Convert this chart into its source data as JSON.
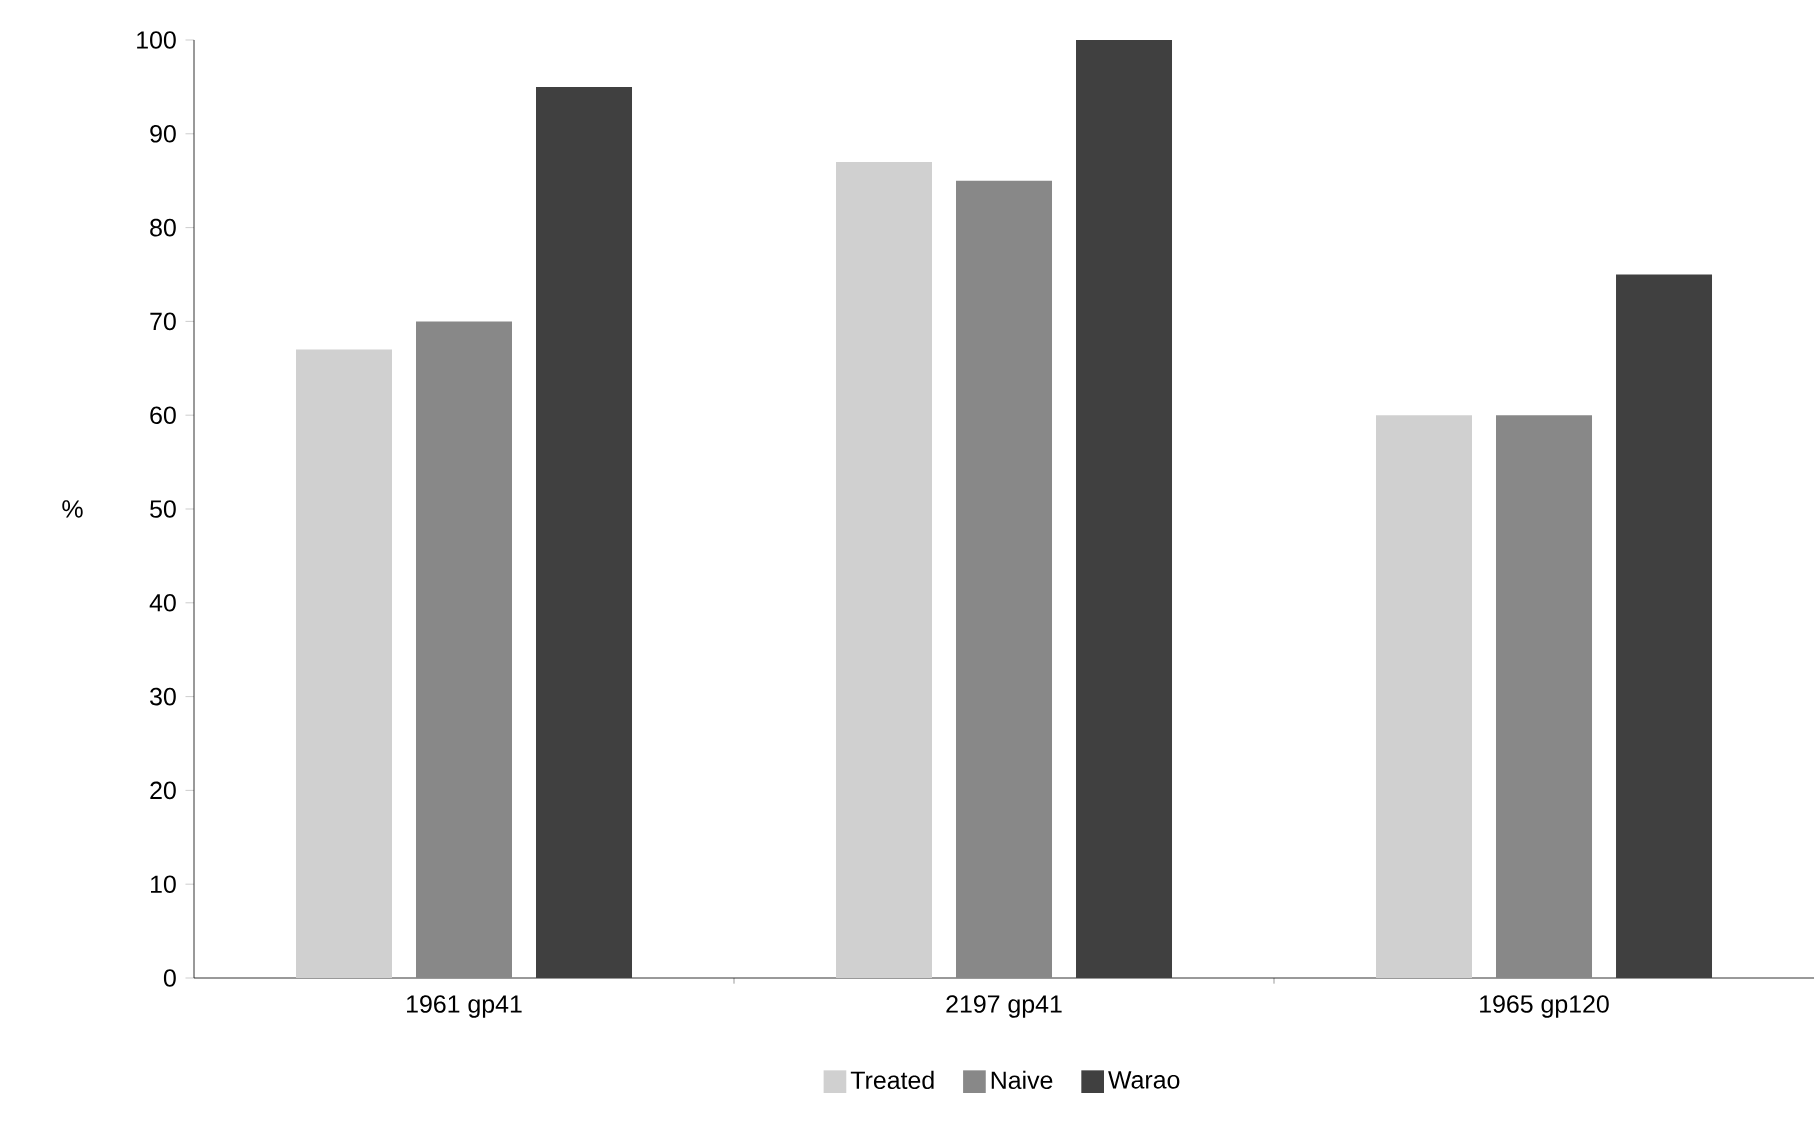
{
  "chart_data": {
    "type": "bar",
    "ylabel": "%",
    "categories": [
      "1961 gp41",
      "2197 gp41",
      "1965 gp120"
    ],
    "series": [
      {
        "name": "Treated",
        "color": "#d0d0d0",
        "values": [
          67,
          87,
          60
        ]
      },
      {
        "name": "Naive",
        "color": "#888888",
        "values": [
          70,
          85,
          60
        ]
      },
      {
        "name": "Warao",
        "color": "#404040",
        "values": [
          95,
          100,
          75
        ]
      }
    ],
    "ylim": [
      0,
      100
    ],
    "yticks": [
      0,
      10,
      20,
      30,
      40,
      50,
      60,
      70,
      80,
      90,
      100
    ],
    "grid": false,
    "legend": "bottom"
  }
}
